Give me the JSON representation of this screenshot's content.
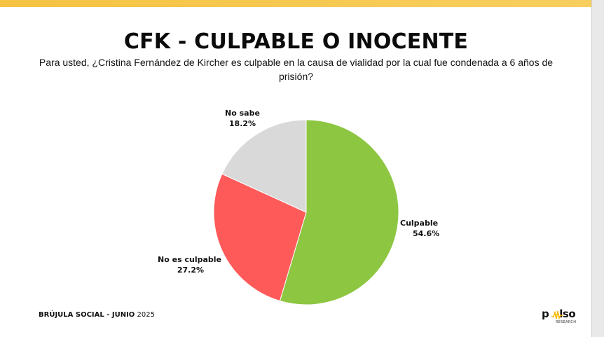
{
  "title": "CFK - CULPABLE O INOCENTE",
  "subtitle": "Para usted, ¿Cristina Fernández de Kircher es culpable en la causa de vialidad por la cual fue condenada a 6 años de prisión?",
  "footer": {
    "brand": "BRÚJULA SOCIAL - JUNIO",
    "year": "2025"
  },
  "logo": {
    "word_start": "p",
    "word_end": "lso",
    "sub": "RESEARCH"
  },
  "colors": {
    "accent_bar": "#f6c343",
    "culpable": "#8dc641",
    "no_es_culpable": "#ff5a5a",
    "no_sabe": "#d9d9d9"
  },
  "chart_data": {
    "type": "pie",
    "start": "12 o'clock, clockwise",
    "slices": [
      {
        "label": "Culpable",
        "value": 54.6,
        "display": "54.6%",
        "color": "#8dc641"
      },
      {
        "label": "No es culpable",
        "value": 27.2,
        "display": "27.2%",
        "color": "#ff5a5a"
      },
      {
        "label": "No sabe",
        "value": 18.2,
        "display": "18.2%",
        "color": "#d9d9d9"
      }
    ],
    "legend": "none"
  }
}
